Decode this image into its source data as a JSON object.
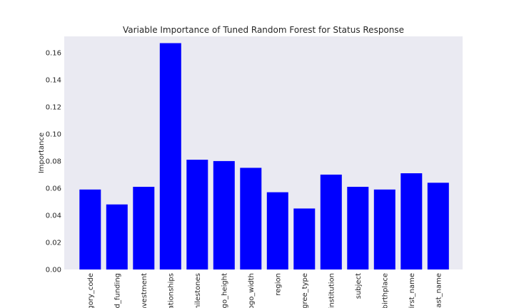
{
  "chart_data": {
    "type": "bar",
    "title": "Variable Importance of Tuned Random Forest for Status Response",
    "xlabel": "",
    "ylabel": "Importance",
    "categories": [
      "gory_code",
      "ad_funding",
      "investment",
      "lationships",
      "milestones",
      "ogo_height",
      "logo_width",
      "region",
      "egree_type",
      "institution",
      "subject",
      "birthplace",
      "first_name",
      "last_name"
    ],
    "values": [
      0.059,
      0.048,
      0.061,
      0.167,
      0.081,
      0.08,
      0.075,
      0.057,
      0.045,
      0.07,
      0.061,
      0.059,
      0.071,
      0.064
    ],
    "ylim": [
      0,
      0.172
    ],
    "yticks": [
      "0.00",
      "0.02",
      "0.04",
      "0.06",
      "0.08",
      "0.10",
      "0.12",
      "0.14",
      "0.16"
    ],
    "grid": false,
    "colors": {
      "bar": "#0000ff",
      "plot_bg": "#eaeaf2"
    }
  }
}
